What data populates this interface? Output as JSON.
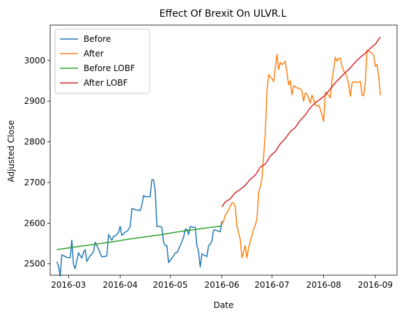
{
  "chart_data": {
    "type": "line",
    "title": "Effect Of Brexit On ULVR.L",
    "xlabel": "Date",
    "ylabel": "Adjusted Close",
    "xlim": [
      "2016-02-19",
      "2016-09-14"
    ],
    "ylim": [
      2472,
      3087
    ],
    "x_ticks": [
      "2016-03",
      "2016-04",
      "2016-05",
      "2016-06",
      "2016-07",
      "2016-08",
      "2016-09"
    ],
    "y_ticks": [
      2500,
      2600,
      2700,
      2800,
      2900,
      3000
    ],
    "grid": false,
    "legend_position": "top-left",
    "series": [
      {
        "name": "Before",
        "color": "#1f77b4",
        "points": [
          [
            "2016-02-23",
            2505
          ],
          [
            "2016-02-24",
            2495
          ],
          [
            "2016-02-25",
            2470
          ],
          [
            "2016-02-26",
            2522
          ],
          [
            "2016-02-29",
            2516
          ],
          [
            "2016-03-01",
            2515
          ],
          [
            "2016-03-02",
            2515
          ],
          [
            "2016-03-03",
            2558
          ],
          [
            "2016-03-04",
            2498
          ],
          [
            "2016-03-05",
            2488
          ],
          [
            "2016-03-07",
            2527
          ],
          [
            "2016-03-08",
            2520
          ],
          [
            "2016-03-09",
            2514
          ],
          [
            "2016-03-10",
            2528
          ],
          [
            "2016-03-11",
            2535
          ],
          [
            "2016-03-12",
            2506
          ],
          [
            "2016-03-14",
            2520
          ],
          [
            "2016-03-15",
            2524
          ],
          [
            "2016-03-16",
            2530
          ],
          [
            "2016-03-17",
            2553
          ],
          [
            "2016-03-18",
            2545
          ],
          [
            "2016-03-21",
            2517
          ],
          [
            "2016-03-22",
            2518
          ],
          [
            "2016-03-23",
            2518
          ],
          [
            "2016-03-24",
            2520
          ],
          [
            "2016-03-25",
            2572
          ],
          [
            "2016-03-27",
            2558
          ],
          [
            "2016-03-28",
            2568
          ],
          [
            "2016-03-29",
            2568
          ],
          [
            "2016-03-30",
            2573
          ],
          [
            "2016-03-31",
            2577
          ],
          [
            "2016-04-01",
            2592
          ],
          [
            "2016-04-02",
            2570
          ],
          [
            "2016-04-04",
            2578
          ],
          [
            "2016-04-05",
            2580
          ],
          [
            "2016-04-06",
            2585
          ],
          [
            "2016-04-07",
            2591
          ],
          [
            "2016-04-08",
            2636
          ],
          [
            "2016-04-11",
            2632
          ],
          [
            "2016-04-12",
            2632
          ],
          [
            "2016-04-13",
            2631
          ],
          [
            "2016-04-14",
            2644
          ],
          [
            "2016-04-15",
            2668
          ],
          [
            "2016-04-16",
            2665
          ],
          [
            "2016-04-18",
            2665
          ],
          [
            "2016-04-19",
            2665
          ],
          [
            "2016-04-20",
            2707
          ],
          [
            "2016-04-21",
            2707
          ],
          [
            "2016-04-22",
            2680
          ],
          [
            "2016-04-23",
            2592
          ],
          [
            "2016-04-25",
            2592
          ],
          [
            "2016-04-26",
            2590
          ],
          [
            "2016-04-27",
            2553
          ],
          [
            "2016-04-28",
            2545
          ],
          [
            "2016-04-29",
            2545
          ],
          [
            "2016-04-30",
            2503
          ],
          [
            "2016-05-02",
            2514
          ],
          [
            "2016-05-03",
            2520
          ],
          [
            "2016-05-04",
            2527
          ],
          [
            "2016-05-05",
            2527
          ],
          [
            "2016-05-06",
            2535
          ],
          [
            "2016-05-07",
            2545
          ],
          [
            "2016-05-09",
            2565
          ],
          [
            "2016-05-10",
            2585
          ],
          [
            "2016-05-11",
            2585
          ],
          [
            "2016-05-12",
            2572
          ],
          [
            "2016-05-13",
            2592
          ],
          [
            "2016-05-14",
            2590
          ],
          [
            "2016-05-16",
            2590
          ],
          [
            "2016-05-17",
            2545
          ],
          [
            "2016-05-18",
            2530
          ],
          [
            "2016-05-19",
            2492
          ],
          [
            "2016-05-20",
            2525
          ],
          [
            "2016-05-21",
            2522
          ],
          [
            "2016-05-23",
            2518
          ],
          [
            "2016-05-24",
            2545
          ],
          [
            "2016-05-25",
            2548
          ],
          [
            "2016-05-26",
            2556
          ],
          [
            "2016-05-27",
            2583
          ],
          [
            "2016-05-28",
            2583
          ],
          [
            "2016-05-30",
            2580
          ],
          [
            "2016-05-31",
            2579
          ],
          [
            "2016-06-01",
            2605
          ]
        ]
      },
      {
        "name": "After",
        "color": "#ff7f0e",
        "points": [
          [
            "2016-06-01",
            2597
          ],
          [
            "2016-06-02",
            2605
          ],
          [
            "2016-06-03",
            2620
          ],
          [
            "2016-06-04",
            2625
          ],
          [
            "2016-06-06",
            2642
          ],
          [
            "2016-06-07",
            2650
          ],
          [
            "2016-06-08",
            2650
          ],
          [
            "2016-06-09",
            2640
          ],
          [
            "2016-06-10",
            2592
          ],
          [
            "2016-06-12",
            2560
          ],
          [
            "2016-06-13",
            2515
          ],
          [
            "2016-06-14",
            2530
          ],
          [
            "2016-06-15",
            2545
          ],
          [
            "2016-06-16",
            2515
          ],
          [
            "2016-06-17",
            2540
          ],
          [
            "2016-06-18",
            2555
          ],
          [
            "2016-06-20",
            2585
          ],
          [
            "2016-06-21",
            2595
          ],
          [
            "2016-06-22",
            2610
          ],
          [
            "2016-06-23",
            2675
          ],
          [
            "2016-06-24",
            2690
          ],
          [
            "2016-06-25",
            2710
          ],
          [
            "2016-06-27",
            2820
          ],
          [
            "2016-06-28",
            2925
          ],
          [
            "2016-06-29",
            2965
          ],
          [
            "2016-06-30",
            2960
          ],
          [
            "2016-07-01",
            2955
          ],
          [
            "2016-07-02",
            2948
          ],
          [
            "2016-07-04",
            3015
          ],
          [
            "2016-07-05",
            2978
          ],
          [
            "2016-07-06",
            2995
          ],
          [
            "2016-07-07",
            2990
          ],
          [
            "2016-07-08",
            2993
          ],
          [
            "2016-07-09",
            2998
          ],
          [
            "2016-07-11",
            2940
          ],
          [
            "2016-07-12",
            2950
          ],
          [
            "2016-07-13",
            2915
          ],
          [
            "2016-07-14",
            2938
          ],
          [
            "2016-07-15",
            2935
          ],
          [
            "2016-07-16",
            2933
          ],
          [
            "2016-07-18",
            2930
          ],
          [
            "2016-07-19",
            2925
          ],
          [
            "2016-07-20",
            2900
          ],
          [
            "2016-07-21",
            2920
          ],
          [
            "2016-07-22",
            2918
          ],
          [
            "2016-07-24",
            2895
          ],
          [
            "2016-07-25",
            2915
          ],
          [
            "2016-07-26",
            2905
          ],
          [
            "2016-07-27",
            2890
          ],
          [
            "2016-07-28",
            2888
          ],
          [
            "2016-07-29",
            2890
          ],
          [
            "2016-07-30",
            2880
          ],
          [
            "2016-08-01",
            2850
          ],
          [
            "2016-08-02",
            2922
          ],
          [
            "2016-08-03",
            2918
          ],
          [
            "2016-08-04",
            2915
          ],
          [
            "2016-08-05",
            2908
          ],
          [
            "2016-08-06",
            2950
          ],
          [
            "2016-08-08",
            3008
          ],
          [
            "2016-08-09",
            2998
          ],
          [
            "2016-08-10",
            3005
          ],
          [
            "2016-08-11",
            3005
          ],
          [
            "2016-08-12",
            2985
          ],
          [
            "2016-08-13",
            2975
          ],
          [
            "2016-08-15",
            2960
          ],
          [
            "2016-08-16",
            2940
          ],
          [
            "2016-08-17",
            2912
          ],
          [
            "2016-08-18",
            2945
          ],
          [
            "2016-08-19",
            2947
          ],
          [
            "2016-08-20",
            2947
          ],
          [
            "2016-08-22",
            2947
          ],
          [
            "2016-08-23",
            2948
          ],
          [
            "2016-08-24",
            2915
          ],
          [
            "2016-08-25",
            2913
          ],
          [
            "2016-08-26",
            2948
          ],
          [
            "2016-08-27",
            3025
          ],
          [
            "2016-08-29",
            3020
          ],
          [
            "2016-08-30",
            3018
          ],
          [
            "2016-08-31",
            3012
          ],
          [
            "2016-09-01",
            2985
          ],
          [
            "2016-09-02",
            2990
          ],
          [
            "2016-09-03",
            2960
          ],
          [
            "2016-09-04",
            2915
          ]
        ]
      },
      {
        "name": "Before LOBF",
        "color": "#2ca02c",
        "points": [
          [
            "2016-02-23",
            2535
          ],
          [
            "2016-03-01",
            2539
          ],
          [
            "2016-03-08",
            2543
          ],
          [
            "2016-03-15",
            2547
          ],
          [
            "2016-03-22",
            2551
          ],
          [
            "2016-03-29",
            2555
          ],
          [
            "2016-04-05",
            2560
          ],
          [
            "2016-04-12",
            2564
          ],
          [
            "2016-04-19",
            2568
          ],
          [
            "2016-04-26",
            2572
          ],
          [
            "2016-05-03",
            2577
          ],
          [
            "2016-05-10",
            2581
          ],
          [
            "2016-05-17",
            2585
          ],
          [
            "2016-05-24",
            2589
          ],
          [
            "2016-06-01",
            2593
          ]
        ]
      },
      {
        "name": "After LOBF",
        "color": "#d62728",
        "points": [
          [
            "2016-06-01",
            2640
          ],
          [
            "2016-06-03",
            2652
          ],
          [
            "2016-06-06",
            2660
          ],
          [
            "2016-06-09",
            2675
          ],
          [
            "2016-06-12",
            2683
          ],
          [
            "2016-06-15",
            2693
          ],
          [
            "2016-06-18",
            2708
          ],
          [
            "2016-06-21",
            2718
          ],
          [
            "2016-06-24",
            2738
          ],
          [
            "2016-06-27",
            2745
          ],
          [
            "2016-06-30",
            2765
          ],
          [
            "2016-07-03",
            2776
          ],
          [
            "2016-07-06",
            2795
          ],
          [
            "2016-07-09",
            2808
          ],
          [
            "2016-07-12",
            2825
          ],
          [
            "2016-07-15",
            2835
          ],
          [
            "2016-07-18",
            2853
          ],
          [
            "2016-07-21",
            2866
          ],
          [
            "2016-07-24",
            2884
          ],
          [
            "2016-07-27",
            2896
          ],
          [
            "2016-07-30",
            2905
          ],
          [
            "2016-08-02",
            2915
          ],
          [
            "2016-08-05",
            2930
          ],
          [
            "2016-08-08",
            2945
          ],
          [
            "2016-08-11",
            2958
          ],
          [
            "2016-08-14",
            2970
          ],
          [
            "2016-08-17",
            2982
          ],
          [
            "2016-08-20",
            2996
          ],
          [
            "2016-08-23",
            3008
          ],
          [
            "2016-08-26",
            3018
          ],
          [
            "2016-08-29",
            3030
          ],
          [
            "2016-09-01",
            3040
          ],
          [
            "2016-09-04",
            3058
          ]
        ]
      }
    ]
  }
}
